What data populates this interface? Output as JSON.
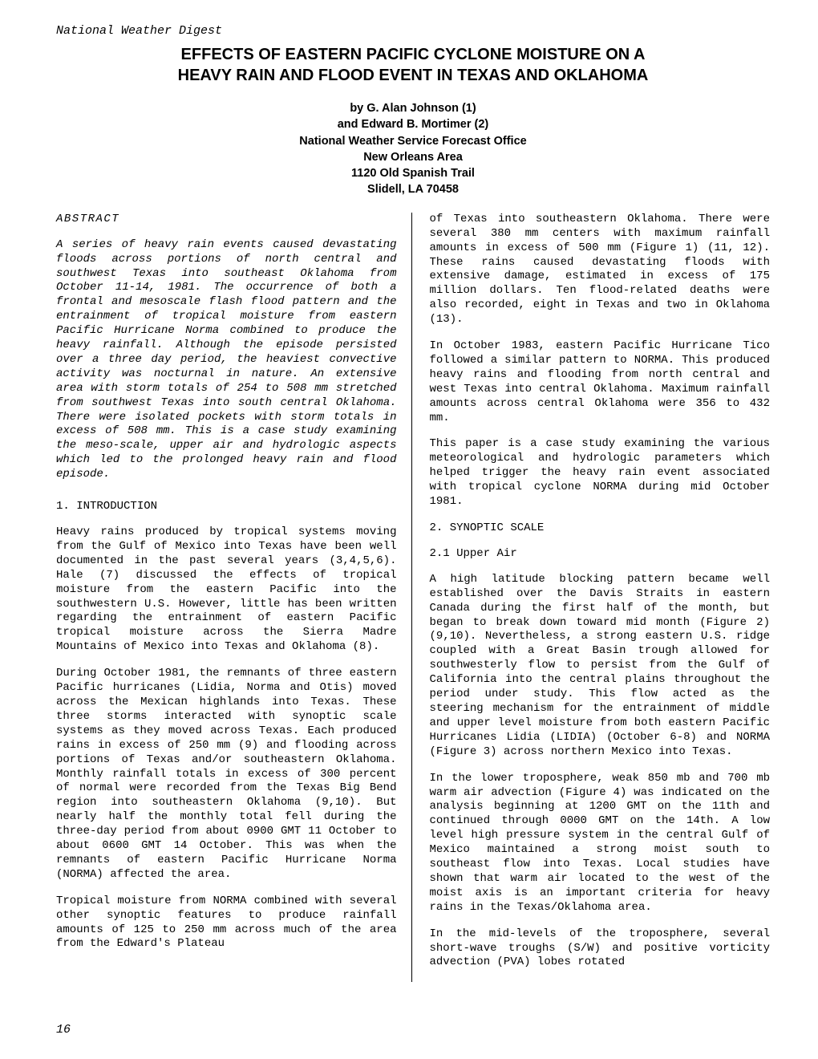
{
  "journal_header": "National Weather Digest",
  "title_line1": "EFFECTS OF EASTERN PACIFIC CYCLONE MOISTURE ON A",
  "title_line2": "HEAVY RAIN AND FLOOD EVENT IN TEXAS AND OKLAHOMA",
  "byline": {
    "authors_line1": "by G. Alan Johnson (1)",
    "authors_line2": "and Edward B. Mortimer (2)",
    "affiliation1": "National Weather Service Forecast Office",
    "affiliation2": "New Orleans Area",
    "address1": "1120 Old Spanish Trail",
    "address2": "Slidell, LA  70458"
  },
  "abstract_heading": "ABSTRACT",
  "abstract_text": "A series of heavy rain events caused devastating floods across portions of north central and southwest Texas into southeast Oklahoma from October 11-14, 1981.  The occurrence of both a frontal and mesoscale flash flood pattern and the entrainment of tropical moisture from eastern Pacific Hurricane Norma combined to produce the heavy rainfall.  Although the episode persisted over a three day period, the heaviest convective activity was nocturnal in nature.  An extensive area with storm totals of 254 to 508 mm stretched from southwest Texas into south central Oklahoma.  There were isolated pockets with storm totals in excess of 508 mm.  This is a case study examining the meso-scale, upper air and hydrologic aspects which led to the prolonged heavy rain and flood episode.",
  "section1_heading": "1.  INTRODUCTION",
  "intro_p1": "Heavy rains produced by tropical systems moving from the Gulf of Mexico into Texas have been well documented in the past several years (3,4,5,6).  Hale (7) discussed the effects of tropical moisture from the eastern Pacific into the southwestern U.S.  However, little has been written regarding the entrainment of eastern Pacific tropical moisture across the Sierra Madre Mountains of Mexico into Texas and Oklahoma (8).",
  "intro_p2": "During October 1981, the remnants of three eastern Pacific hurricanes (Lidia, Norma and Otis) moved across the Mexican highlands into Texas.  These three storms interacted with synoptic scale systems as they moved across Texas.  Each produced rains in excess of 250 mm (9) and flooding across portions of Texas and/or southeastern Oklahoma.  Monthly rainfall totals in excess of 300 percent of normal were recorded from the Texas Big Bend region into southeastern Oklahoma (9,10).  But nearly half the monthly total fell during the three-day period from about 0900 GMT 11 October to about 0600 GMT 14 October.  This was when the remnants of eastern Pacific Hurricane Norma (NORMA) affected the area.",
  "intro_p3": "Tropical moisture from NORMA combined with several other synoptic features to produce rainfall amounts of 125 to 250 mm across much of the area from the Edward's Plateau",
  "col2_p1": "of Texas into southeastern Oklahoma.  There were several 380 mm centers with maximum rainfall amounts in excess of 500 mm (Figure 1) (11, 12).  These rains caused devastating floods with extensive damage, estimated in excess of 175 million dollars. Ten flood-related deaths were also recorded, eight in Texas and two in Oklahoma (13).",
  "col2_p2": "In October 1983, eastern Pacific Hurricane Tico followed a similar pattern to NORMA.  This produced heavy rains and flooding from north central and west Texas into central Oklahoma.  Maximum rainfall amounts across central Oklahoma were 356 to 432 mm.",
  "col2_p3": "This paper is a case study examining the various meteorological and hydrologic parameters which helped trigger the heavy rain event associated with tropical cyclone NORMA during mid October 1981.",
  "section2_heading": "2.  SYNOPTIC SCALE",
  "section21_heading": "2.1  Upper Air",
  "syn_p1": "A high latitude blocking pattern became well established over the Davis Straits in eastern Canada during the first half of the month, but began to break down toward mid month (Figure 2) (9,10).  Nevertheless, a strong eastern U.S. ridge coupled with a Great Basin trough allowed for southwesterly flow to persist from the Gulf of California into the central plains throughout the period under study.  This flow acted as the steering mechanism for the entrainment of middle and upper level moisture from both eastern Pacific Hurricanes Lidia (LIDIA) (October 6-8) and NORMA (Figure 3) across northern Mexico into Texas.",
  "syn_p2": "In the lower troposphere, weak 850 mb and 700 mb warm air advection (Figure 4) was indicated on the analysis beginning at 1200 GMT on the 11th and continued through 0000 GMT on the 14th. A low level high pressure system in the central Gulf of Mexico maintained a strong moist south to southeast flow into Texas.  Local studies have shown that warm air located to the west of the moist axis is an important criteria for heavy rains in the Texas/Oklahoma area.",
  "syn_p3": "In the mid-levels of the troposphere, several short-wave troughs (S/W) and positive vorticity advection (PVA) lobes rotated",
  "page_number": "16"
}
